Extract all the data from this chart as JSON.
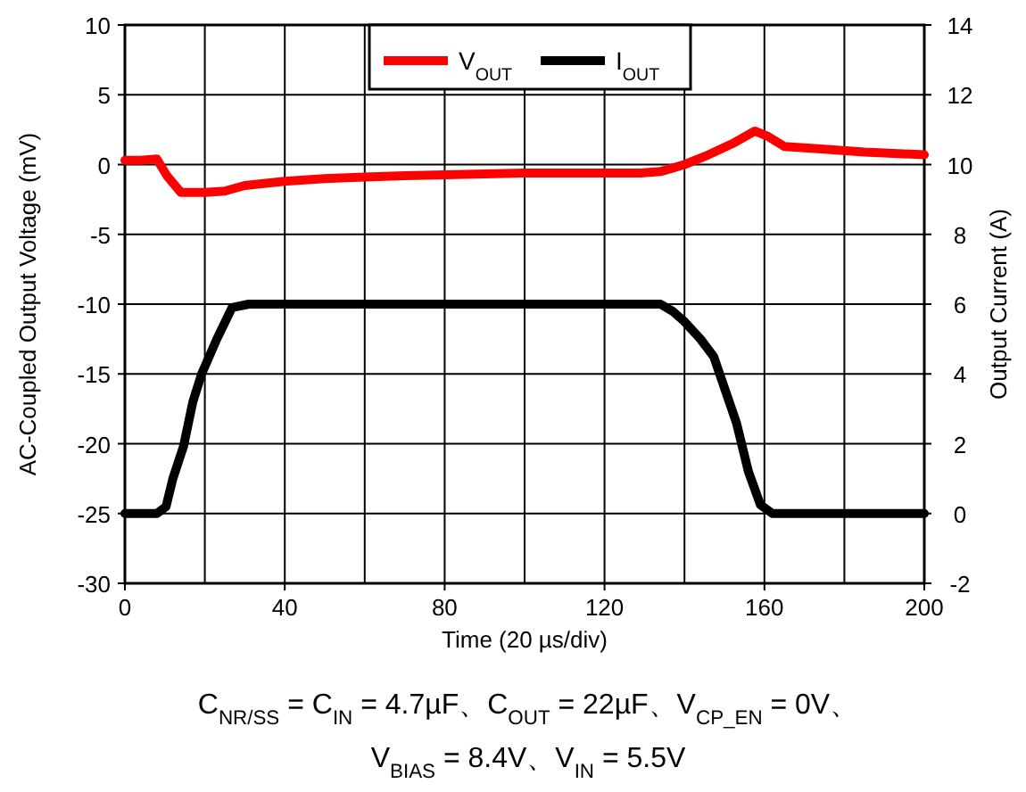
{
  "chart_data": {
    "type": "line",
    "xlabel": "Time (20 µs/div)",
    "ylabel": "AC-Coupled Output Voltage (mV)",
    "y2label": "Output Current (A)",
    "xlim": [
      0,
      200
    ],
    "xticks": [
      0,
      40,
      80,
      120,
      160,
      200
    ],
    "ylim": [
      -30,
      10
    ],
    "yticks": [
      -30,
      -25,
      -20,
      -15,
      -10,
      -5,
      0,
      5,
      10
    ],
    "y2lim": [
      -2,
      14
    ],
    "y2ticks": [
      -2,
      0,
      2,
      4,
      6,
      8,
      10,
      12,
      14
    ],
    "grid": true,
    "legend": "top",
    "line_style": "solid",
    "series": [
      {
        "name": "V$_{OUT}$",
        "color": "#ff0000",
        "x": [
          0,
          4,
          8,
          10.5,
          14,
          20,
          25,
          30,
          40,
          50,
          60,
          70,
          85,
          100,
          115,
          129,
          134,
          140,
          146,
          152,
          157.6,
          161,
          165,
          175,
          185,
          200
        ],
        "values": [
          0.3,
          0.3,
          0.4,
          -0.8,
          -2,
          -2,
          -1.9,
          -1.5,
          -1.2,
          -1.0,
          -0.9,
          -0.8,
          -0.7,
          -0.6,
          -0.6,
          -0.6,
          -0.5,
          0,
          0.7,
          1.5,
          2.4,
          2,
          1.3,
          1.1,
          0.9,
          0.7
        ]
      },
      {
        "name": "I$_{OUT}$",
        "color": "#000000",
        "axis": "y2",
        "x": [
          0,
          8,
          10.3,
          12,
          14.7,
          17,
          19.2,
          23,
          26.8,
          31,
          60,
          100,
          134,
          137,
          140,
          144,
          147.3,
          150,
          153,
          156,
          159,
          162,
          180,
          200
        ],
        "values": [
          0,
          0,
          0.2,
          1,
          1.94,
          3.2,
          4.0,
          5.0,
          5.9,
          6,
          6,
          6,
          6,
          5.8,
          5.5,
          5.0,
          4.5,
          3.6,
          2.6,
          1.2,
          0.25,
          0,
          0,
          0
        ]
      }
    ],
    "annotations": [
      "C$_{NR/SS}$ = C$_{IN}$ = 4.7µF、C$_{OUT}$ = 22µF、V$_{CP_EN}$ = 0V、",
      "V$_{BIAS}$ = 8.4V、V$_{IN}$ = 5.5V"
    ]
  }
}
